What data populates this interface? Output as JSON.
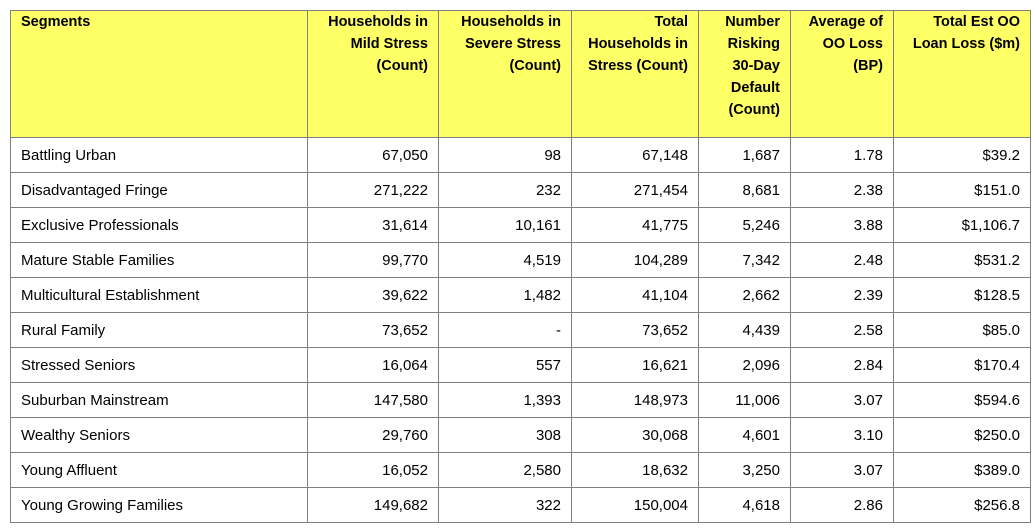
{
  "table": {
    "headers": [
      "Segments",
      "Households in Mild Stress (Count)",
      "Households in Severe Stress (Count)",
      "Total Households in Stress (Count)",
      "Number Risking 30-Day Default (Count)",
      "Average of OO Loss (BP)",
      "Total Est OO Loan Loss ($m)"
    ],
    "rows": [
      [
        "Battling Urban",
        "67,050",
        "98",
        "67,148",
        "1,687",
        "1.78",
        "$39.2"
      ],
      [
        "Disadvantaged Fringe",
        "271,222",
        "232",
        "271,454",
        "8,681",
        "2.38",
        "$151.0"
      ],
      [
        "Exclusive Professionals",
        "31,614",
        "10,161",
        "41,775",
        "5,246",
        "3.88",
        "$1,106.7"
      ],
      [
        "Mature Stable Families",
        "99,770",
        "4,519",
        "104,289",
        "7,342",
        "2.48",
        "$531.2"
      ],
      [
        "Multicultural Establishment",
        "39,622",
        "1,482",
        "41,104",
        "2,662",
        "2.39",
        "$128.5"
      ],
      [
        "Rural Family",
        "73,652",
        "-",
        "73,652",
        "4,439",
        "2.58",
        "$85.0"
      ],
      [
        "Stressed Seniors",
        "16,064",
        "557",
        "16,621",
        "2,096",
        "2.84",
        "$170.4"
      ],
      [
        "Suburban Mainstream",
        "147,580",
        "1,393",
        "148,973",
        "11,006",
        "3.07",
        "$594.6"
      ],
      [
        "Wealthy Seniors",
        "29,760",
        "308",
        "30,068",
        "4,601",
        "3.10",
        "$250.0"
      ],
      [
        "Young Affluent",
        "16,052",
        "2,580",
        "18,632",
        "3,250",
        "3.07",
        "$389.0"
      ],
      [
        "Young Growing Families",
        "149,682",
        "322",
        "150,004",
        "4,618",
        "2.86",
        "$256.8"
      ]
    ]
  }
}
